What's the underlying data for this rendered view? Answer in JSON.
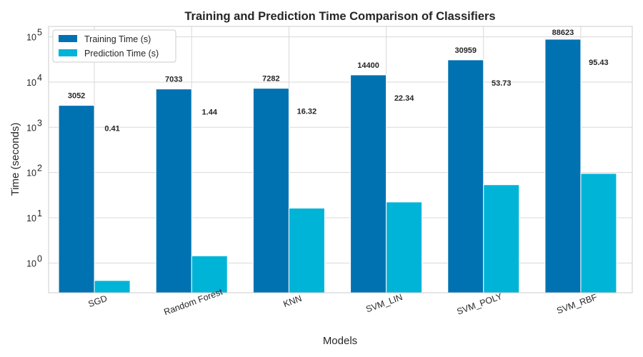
{
  "chart_data": {
    "type": "bar",
    "title": "Training and Prediction Time Comparison of Classifiers",
    "xlabel": "Models",
    "ylabel": "Time (seconds)",
    "yscale": "log",
    "ylim": [
      0.22,
      170000
    ],
    "yticks": [
      1,
      10,
      100,
      1000,
      10000,
      100000
    ],
    "grid": true,
    "legend_position": "top-left",
    "categories": [
      "SGD",
      "Random Forest",
      "KNN",
      "SVM_LIN",
      "SVM_POLY",
      "SVM_RBF"
    ],
    "series": [
      {
        "name": "Training Time (s)",
        "color": "#0072b2",
        "values": [
          3052,
          7033,
          7282,
          14400,
          30959,
          88623
        ],
        "labels": [
          "3052",
          "7033",
          "7282",
          "14400",
          "30959",
          "88623"
        ]
      },
      {
        "name": "Prediction Time (s)",
        "color": "#00b4d8",
        "values": [
          0.41,
          1.44,
          16.32,
          22.34,
          53.73,
          95.43
        ],
        "labels": [
          "0.41",
          "1.44",
          "16.32",
          "22.34",
          "53.73",
          "95.43"
        ]
      }
    ]
  }
}
